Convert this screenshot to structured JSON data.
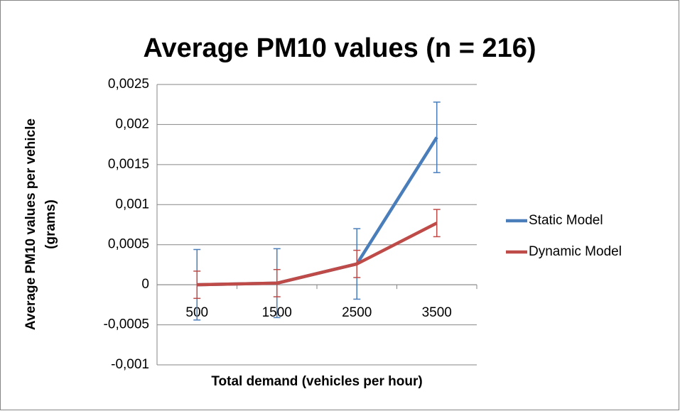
{
  "chart_data": {
    "type": "line",
    "title": "Average PM10 values (n = 216)",
    "y_label": [
      "Average PM10 values per vehicle",
      "(grams)"
    ],
    "x_label": "Total demand (vehicles per hour)",
    "categories": [
      "500",
      "1500",
      "2500",
      "3500"
    ],
    "series": [
      {
        "name": "Static Model",
        "color": "#4a7ebb",
        "values": [
          0,
          2e-05,
          0.00026,
          0.00184
        ],
        "errors": [
          0.00044,
          0.00043,
          0.00044,
          0.00044
        ]
      },
      {
        "name": "Dynamic Model",
        "color": "#be4b48",
        "values": [
          0,
          2e-05,
          0.00026,
          0.00077
        ],
        "errors": [
          0.00017,
          0.00017,
          0.00017,
          0.00017
        ]
      }
    ],
    "ylim": [
      -0.001,
      0.0025
    ],
    "yticks": [
      {
        "value": -0.001,
        "label": "-0,001"
      },
      {
        "value": -0.0005,
        "label": "-0,0005"
      },
      0,
      {
        "value": 0.0005,
        "label": "0,0005"
      },
      {
        "value": 0.001,
        "label": "0,001"
      },
      {
        "value": 0.0015,
        "label": "0,0015"
      },
      {
        "value": 0.002,
        "label": "0,002"
      },
      {
        "value": 0.0025,
        "label": "0,0025"
      }
    ],
    "grid": true,
    "legend": "right"
  }
}
